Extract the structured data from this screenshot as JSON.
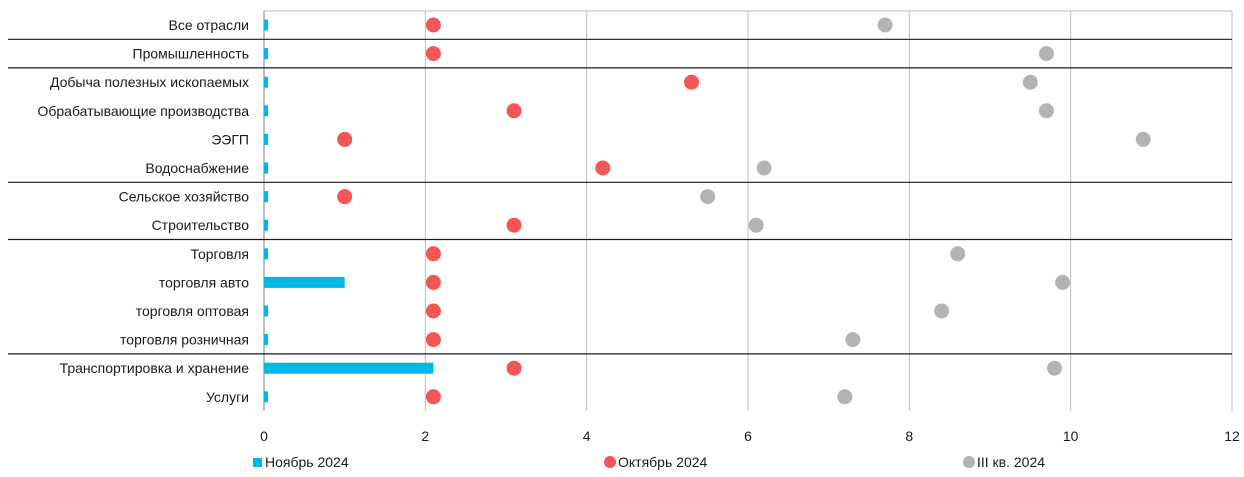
{
  "chart_data": {
    "type": "bar",
    "orientation": "horizontal",
    "categories": [
      "Все отрасли",
      "Промышленность",
      "Добыча полезных ископаемых",
      "Обрабатывающие производства",
      "ЭЭГП",
      "Водоснабжение",
      "Сельское хозяйство",
      "Строительство",
      "Торговля",
      "торговля авто",
      "торговля оптовая",
      "торговля розничная",
      "Транспортировка и хранение",
      "Услуги"
    ],
    "group_separators_after": [
      "Все отрасли",
      "Промышленность",
      "Водоснабжение",
      "Строительство",
      "торговля розничная"
    ],
    "series": [
      {
        "name": "Ноябрь 2024",
        "kind": "bar",
        "color": "#00b8e6",
        "values": [
          0.05,
          0.05,
          0.05,
          0.05,
          0.05,
          0.05,
          0.05,
          0.05,
          0.05,
          1.0,
          0.05,
          0.05,
          2.1,
          0.05
        ]
      },
      {
        "name": "Октябрь 2024",
        "kind": "dot",
        "color": "#f45557",
        "values": [
          2.1,
          2.1,
          5.3,
          3.1,
          1.0,
          4.2,
          1.0,
          3.1,
          2.1,
          2.1,
          2.1,
          2.1,
          3.1,
          2.1
        ]
      },
      {
        "name": "III кв. 2024",
        "kind": "dot",
        "color": "#b3b3b3",
        "values": [
          7.7,
          9.7,
          9.5,
          9.7,
          10.9,
          6.2,
          5.5,
          6.1,
          8.6,
          9.9,
          8.4,
          7.3,
          9.8,
          7.2
        ]
      }
    ],
    "xlim": [
      0,
      12
    ],
    "xticks": [
      "0",
      "2",
      "4",
      "6",
      "8",
      "10",
      "12"
    ],
    "grid": "vertical",
    "legend_position": "bottom",
    "title": "",
    "xlabel": "",
    "ylabel": ""
  }
}
